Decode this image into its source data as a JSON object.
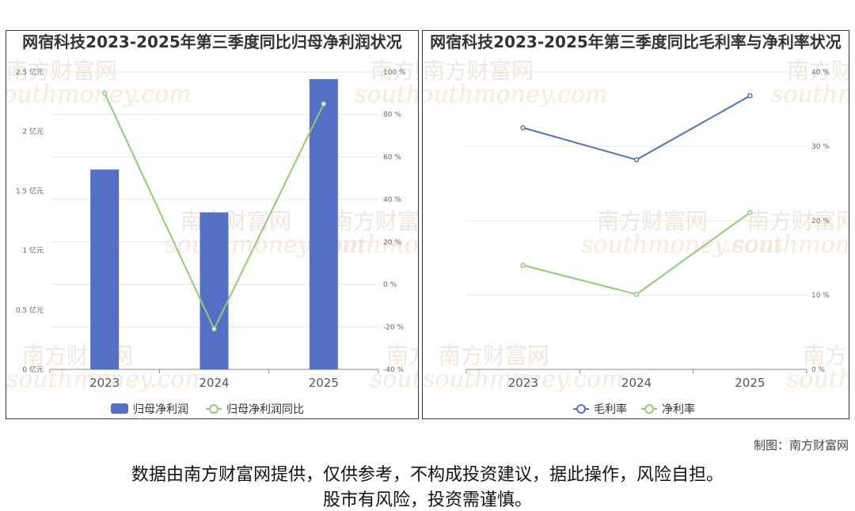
{
  "charts": {
    "left": {
      "title": "网宿科技2023-2025年第三季度同比归母净利润状况"
    },
    "right": {
      "title": "网宿科技2023-2025年第三季度同比毛利率与净利率状况"
    }
  },
  "chart_data": [
    {
      "type": "bar",
      "title": "网宿科技2023-2025年第三季度同比归母净利润状况",
      "categories": [
        "2023",
        "2024",
        "2025"
      ],
      "y_left": {
        "ticks": [
          "0 亿元",
          "0.5 亿元",
          "1 亿元",
          "1.5 亿元",
          "2 亿元",
          "2.5 亿元"
        ],
        "tick_values": [
          0,
          0.5,
          1,
          1.5,
          2,
          2.5
        ],
        "ylim": [
          0,
          2.5
        ]
      },
      "y_right": {
        "ticks": [
          "-40 %",
          "-20 %",
          "0 %",
          "20 %",
          "40 %",
          "60 %",
          "80 %",
          "100 %"
        ],
        "tick_values": [
          -40,
          -20,
          0,
          20,
          40,
          60,
          80,
          100
        ],
        "ylim": [
          -40,
          100
        ]
      },
      "series": [
        {
          "name": "归母净利润",
          "type": "bar",
          "axis": "left",
          "color": "#5470c6",
          "values": [
            1.68,
            1.32,
            2.44
          ]
        },
        {
          "name": "归母净利润同比",
          "type": "line",
          "axis": "right",
          "color": "#91cc75",
          "values": [
            90,
            -21,
            85
          ]
        }
      ],
      "legend": "bottom-center",
      "grid": true
    },
    {
      "type": "line",
      "title": "网宿科技2023-2025年第三季度同比毛利率与净利率状况",
      "categories": [
        "2023",
        "2024",
        "2025"
      ],
      "y_right": {
        "ticks": [
          "0 %",
          "10 %",
          "20 %",
          "30 %",
          "40 %"
        ],
        "tick_values": [
          0,
          10,
          20,
          30,
          40
        ],
        "ylim": [
          0,
          40
        ]
      },
      "series": [
        {
          "name": "毛利率",
          "type": "line",
          "axis": "right",
          "color": "#5470c6",
          "values": [
            32.5,
            28.2,
            36.8
          ]
        },
        {
          "name": "净利率",
          "type": "line",
          "axis": "right",
          "color": "#91cc75",
          "values": [
            14.0,
            10.1,
            21.1
          ]
        }
      ],
      "legend": "bottom-center",
      "grid": true
    }
  ],
  "watermark": {
    "cn": "南方财富网",
    "en": "southmoney.com"
  },
  "footer": {
    "credit": "制图：南方财富网",
    "disclaimer_line1": "数据由南方财富网提供，仅供参考，不构成投资建议，据此操作，风险自担。",
    "disclaimer_line2": "股市有风险，投资需谨慎。"
  }
}
